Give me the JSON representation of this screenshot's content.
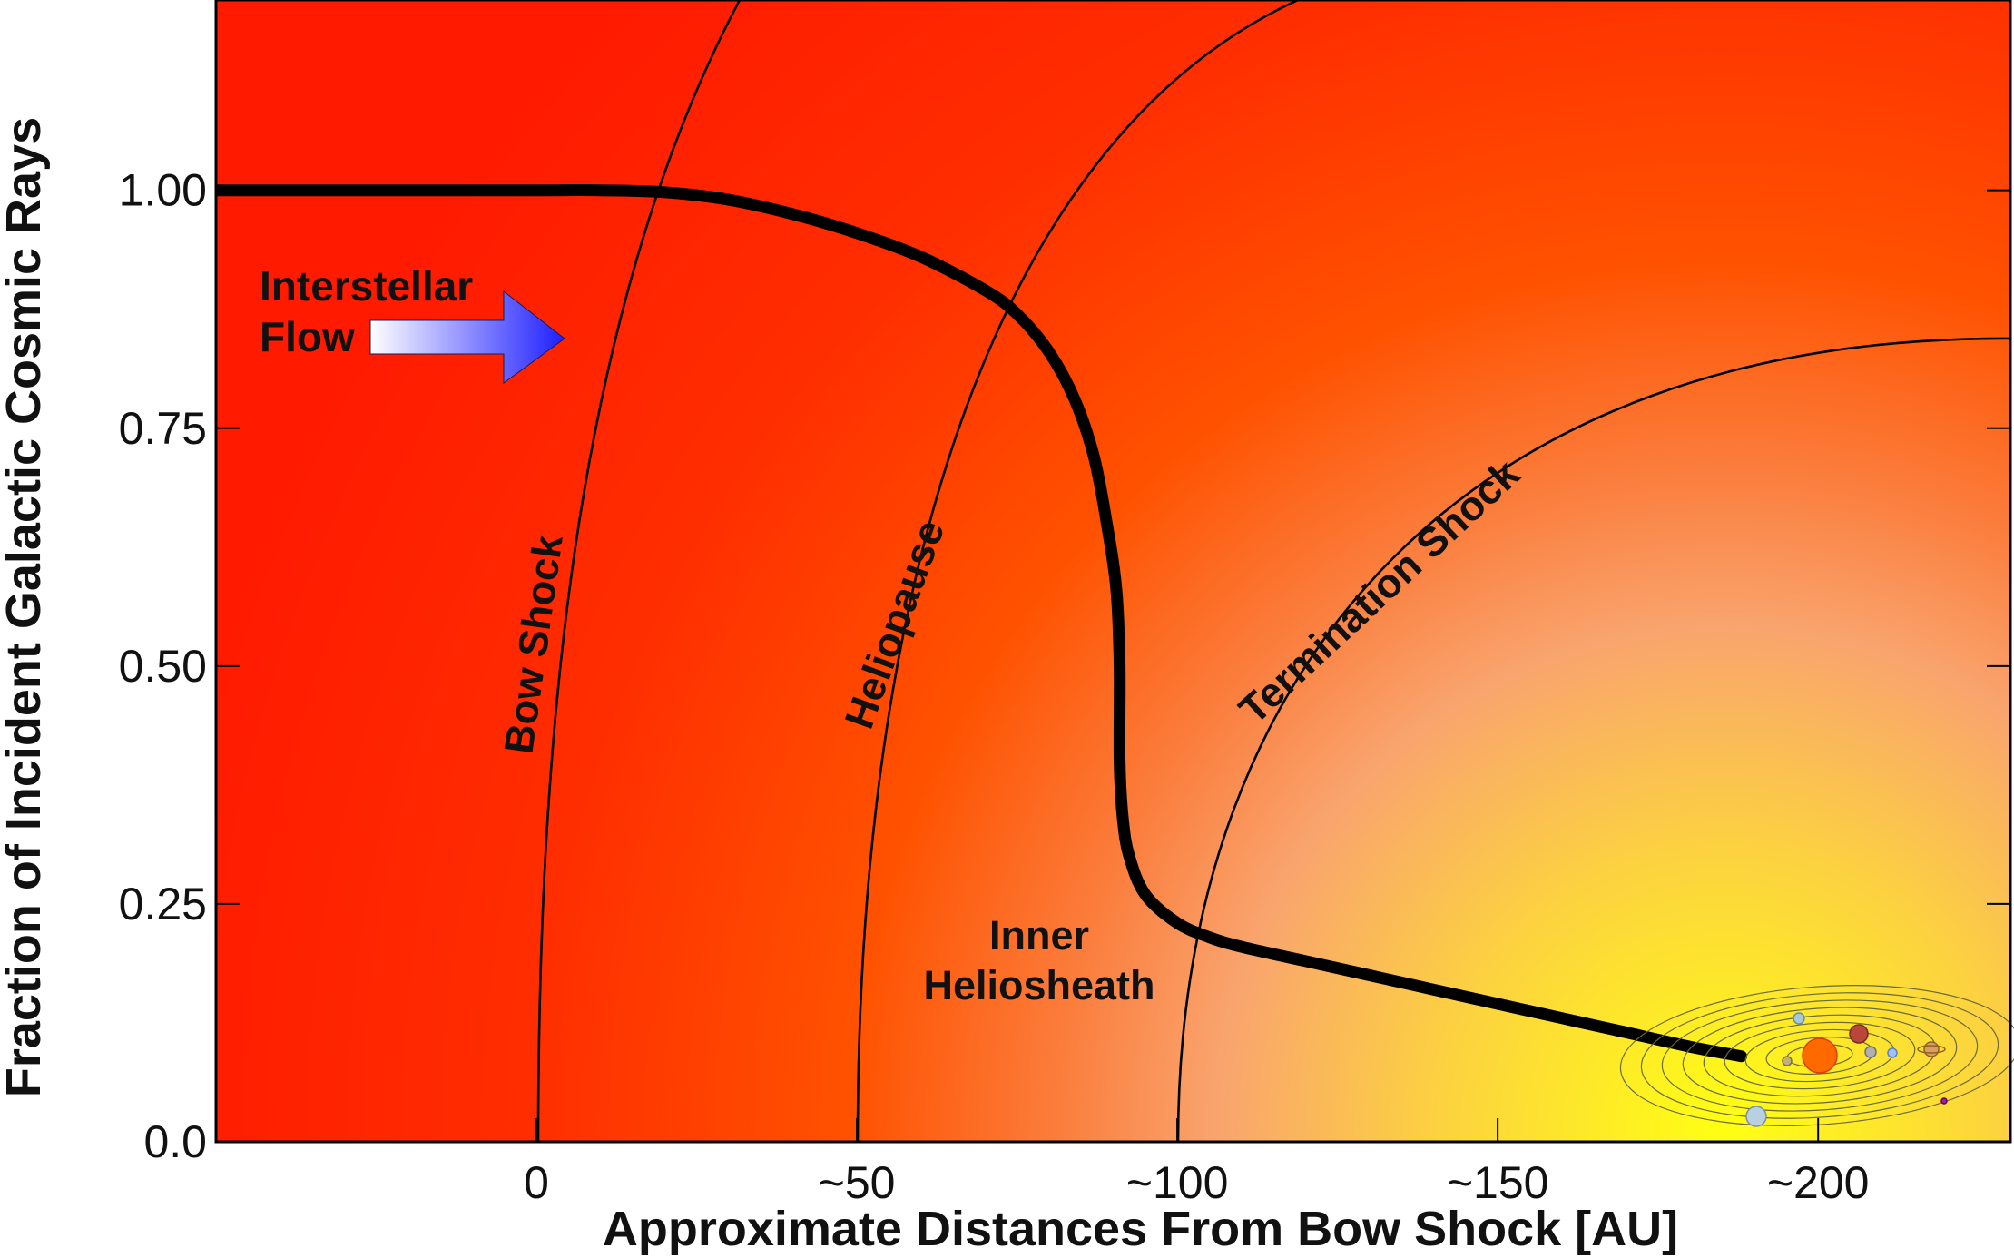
{
  "chart_data": {
    "type": "line",
    "title": "",
    "xlabel": "Approximate Distances From Bow Shock [AU]",
    "ylabel": "Fraction of Incident Galactic Cosmic Rays",
    "xlim": [
      -50,
      230
    ],
    "ylim": [
      0,
      1.2
    ],
    "x_ticks": [
      {
        "value": 0,
        "label": "0"
      },
      {
        "value": 50,
        "label": "~50"
      },
      {
        "value": 100,
        "label": "~100"
      },
      {
        "value": 150,
        "label": "~150"
      },
      {
        "value": 200,
        "label": "~200"
      }
    ],
    "y_ticks": [
      {
        "value": 0,
        "label": "0.0"
      },
      {
        "value": 0.25,
        "label": "0.25"
      },
      {
        "value": 0.5,
        "label": "0.50"
      },
      {
        "value": 0.75,
        "label": "0.75"
      },
      {
        "value": 1.0,
        "label": "1.00"
      }
    ],
    "grid": false,
    "series": [
      {
        "name": "",
        "color": "#000000",
        "x": [
          -50,
          -20,
          0,
          10,
          20,
          30,
          40,
          50,
          60,
          70,
          75,
          80,
          84,
          87,
          89,
          90.5,
          91,
          91,
          91.5,
          92.5,
          95,
          100,
          105,
          110,
          120,
          130,
          140,
          150,
          160,
          170,
          180,
          188
        ],
        "y": [
          1.0,
          1.0,
          1.0,
          1.0,
          0.998,
          0.99,
          0.975,
          0.955,
          0.93,
          0.895,
          0.87,
          0.83,
          0.78,
          0.72,
          0.65,
          0.58,
          0.5,
          0.4,
          0.34,
          0.3,
          0.26,
          0.23,
          0.215,
          0.205,
          0.19,
          0.175,
          0.16,
          0.145,
          0.13,
          0.115,
          0.1,
          0.09
        ]
      }
    ],
    "boundaries": [
      {
        "name": "Bow Shock",
        "x_at_base": 0
      },
      {
        "name": "Heliopause",
        "x_at_base": 50
      },
      {
        "name": "Termination Shock",
        "x_at_base": 100
      }
    ],
    "annotations": {
      "bow_shock": "Bow Shock",
      "heliopause": "Heliopause",
      "termination_shock": "Termination Shock",
      "inner_heliosheath": [
        "Inner",
        "Heliosheath"
      ],
      "interstellar_flow": [
        "Interstellar",
        "Flow"
      ]
    },
    "colors": {
      "outer": "#ff1a00",
      "mid": "#ff5a00",
      "glow": "#f9a070",
      "core": "#ffff10",
      "flow_arrow_start": "#ffffff",
      "flow_arrow_end": "#1f1fff"
    },
    "sun_icon": "solar-system-icon"
  }
}
